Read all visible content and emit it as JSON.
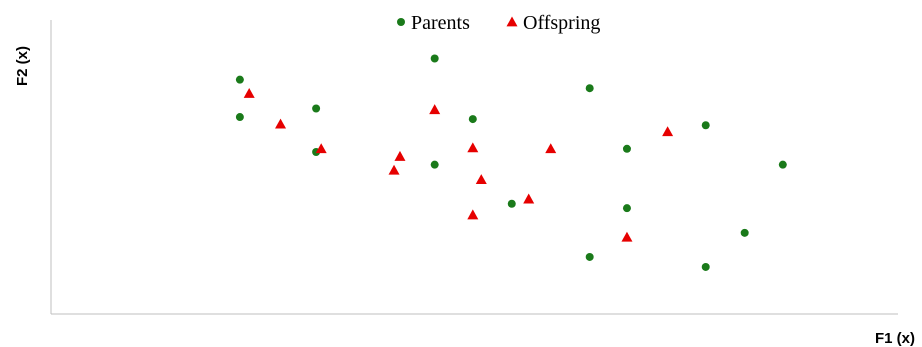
{
  "chart_data": {
    "type": "scatter",
    "title": "",
    "xlabel": "F1 (x)",
    "ylabel": "F2 (x)",
    "xlim": [
      0,
      100
    ],
    "ylim": [
      0,
      100
    ],
    "grid": false,
    "legend_position": "top-center",
    "series": [
      {
        "name": "Parents",
        "marker": "circle",
        "color": "#1a7a1a",
        "points": [
          {
            "x": 22.3,
            "y": 79.7
          },
          {
            "x": 22.3,
            "y": 67.0
          },
          {
            "x": 31.3,
            "y": 69.9
          },
          {
            "x": 31.3,
            "y": 55.1
          },
          {
            "x": 45.3,
            "y": 86.9
          },
          {
            "x": 45.3,
            "y": 50.8
          },
          {
            "x": 49.8,
            "y": 66.3
          },
          {
            "x": 54.4,
            "y": 37.5
          },
          {
            "x": 63.6,
            "y": 76.8
          },
          {
            "x": 63.6,
            "y": 19.4
          },
          {
            "x": 68.0,
            "y": 56.2
          },
          {
            "x": 68.0,
            "y": 36.0
          },
          {
            "x": 77.3,
            "y": 64.2
          },
          {
            "x": 77.3,
            "y": 16.0
          },
          {
            "x": 81.9,
            "y": 27.6
          },
          {
            "x": 86.4,
            "y": 50.8
          }
        ]
      },
      {
        "name": "Offspring",
        "marker": "triangle",
        "color": "#e60000",
        "points": [
          {
            "x": 23.4,
            "y": 75.0
          },
          {
            "x": 27.1,
            "y": 64.6
          },
          {
            "x": 31.9,
            "y": 56.2
          },
          {
            "x": 40.5,
            "y": 48.9
          },
          {
            "x": 41.2,
            "y": 53.6
          },
          {
            "x": 45.3,
            "y": 69.5
          },
          {
            "x": 49.8,
            "y": 56.5
          },
          {
            "x": 50.8,
            "y": 45.7
          },
          {
            "x": 49.8,
            "y": 33.7
          },
          {
            "x": 56.4,
            "y": 39.1
          },
          {
            "x": 59.0,
            "y": 56.2
          },
          {
            "x": 68.0,
            "y": 26.1
          },
          {
            "x": 72.8,
            "y": 62.0
          }
        ]
      }
    ]
  }
}
